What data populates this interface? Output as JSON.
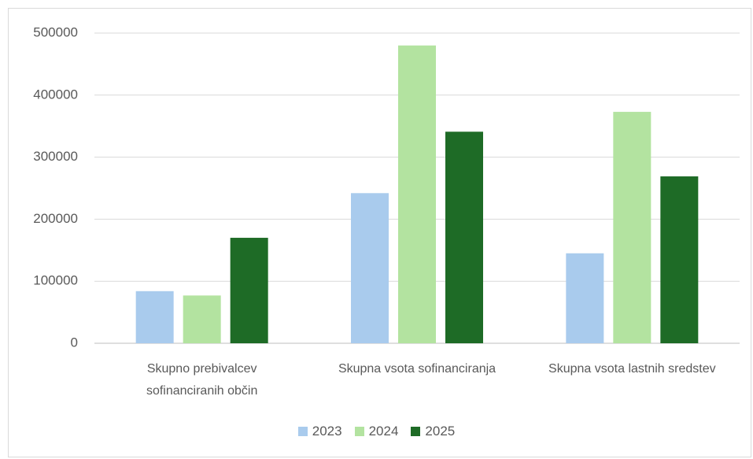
{
  "chart_data": {
    "type": "bar",
    "categories": [
      "Skupno prebivalcev sofinanciranih občin",
      "Skupna vsota sofinanciranja",
      "Skupna vsota lastnih sredstev"
    ],
    "series": [
      {
        "name": "2023",
        "color": "#a9cbed",
        "values": [
          84000,
          242000,
          145000
        ]
      },
      {
        "name": "2024",
        "color": "#b3e3a0",
        "values": [
          77000,
          480000,
          373000
        ]
      },
      {
        "name": "2025",
        "color": "#1e6b26",
        "values": [
          170000,
          341000,
          269000
        ]
      }
    ],
    "ylim": [
      0,
      500000
    ],
    "yticks": [
      0,
      100000,
      200000,
      300000,
      400000,
      500000
    ],
    "grid": true,
    "legend": "bottom"
  }
}
